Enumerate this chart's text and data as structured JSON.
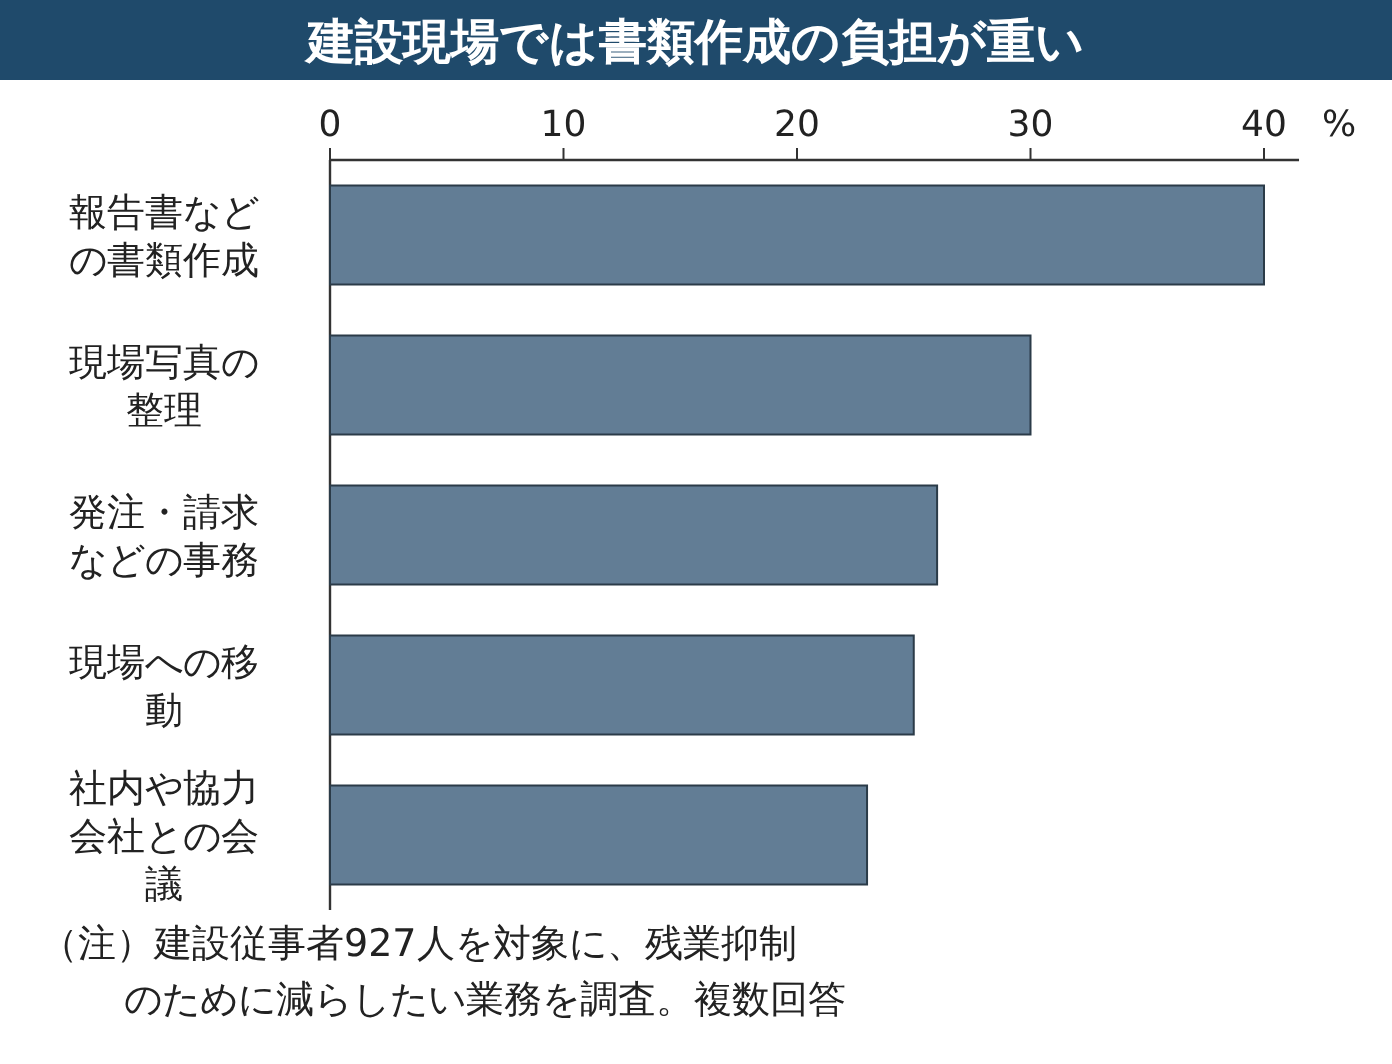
{
  "chart_data": {
    "type": "bar",
    "orientation": "horizontal",
    "title": "建設現場では書類作成の負担が重い",
    "categories": [
      "報告書などの書類作成",
      "現場写真の整理",
      "発注・請求などの事務",
      "現場への移動",
      "社内や協力会社との会議"
    ],
    "values": [
      40,
      30,
      26,
      25,
      23
    ],
    "color": "#627d95",
    "xlim": [
      0,
      41.5
    ],
    "xticks": [
      0,
      10,
      20,
      30,
      40
    ],
    "xlabel": "%",
    "grid": false,
    "annotations": [
      "（注）建設従事者927人を対象に、残業抑制のために減らしたい業務を調査。複数回答"
    ]
  }
}
